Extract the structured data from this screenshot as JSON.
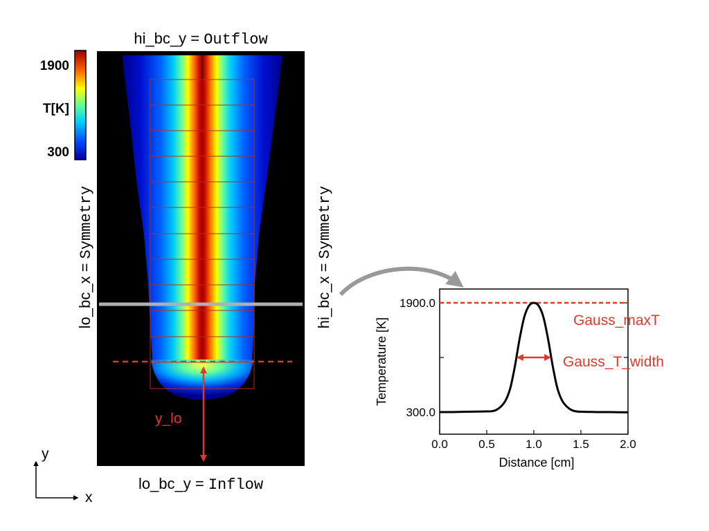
{
  "colors": {
    "annotation": "#e0392b",
    "field_background": "#000000",
    "sample_line": "#b0b0b0",
    "curve": "#000000",
    "curved_arrow": "#999999",
    "amr_grid": "#b03020"
  },
  "colorbar": {
    "max_label": "1900",
    "title": "T[K]",
    "min_label": "300"
  },
  "boundaries": {
    "hi_y": {
      "key": "hi_bc_y = ",
      "value": "Outflow"
    },
    "lo_y": {
      "key": "lo_bc_y = ",
      "value": "Inflow"
    },
    "lo_x": {
      "key": "lo_bc_x = ",
      "value": "Symmetry"
    },
    "hi_x": {
      "key": "hi_bc_x = ",
      "value": "Symmetry"
    }
  },
  "annotations": {
    "y_lo": "y_lo",
    "gauss_maxT": "Gauss_maxT",
    "gauss_T_width": "Gauss_T_width"
  },
  "axes_indicator": {
    "x": "x",
    "y": "y"
  },
  "chart_data": {
    "type": "line",
    "xlabel": "Distance [cm]",
    "ylabel": "Temperature [K]",
    "xlim": [
      0.0,
      2.0
    ],
    "ylim": [
      300,
      1900
    ],
    "x_tick_labels": [
      "0.0",
      "0.5",
      "1.0",
      "1.5",
      "2.0"
    ],
    "y_tick_labels": [
      "300.0",
      "1900.0"
    ],
    "series": [
      {
        "x": [
          0.0,
          0.1,
          0.2,
          0.3,
          0.4,
          0.5,
          0.55,
          0.6,
          0.65,
          0.7,
          0.75,
          0.8,
          0.85,
          0.9,
          0.95,
          1.0,
          1.05,
          1.1,
          1.15,
          1.2,
          1.25,
          1.3,
          1.35,
          1.4,
          1.45,
          1.5,
          1.6,
          1.7,
          1.8,
          1.9,
          2.0
        ],
        "y": [
          300,
          300,
          302,
          305,
          308,
          310,
          312,
          330,
          380,
          470,
          650,
          980,
          1380,
          1700,
          1860,
          1900,
          1860,
          1700,
          1380,
          980,
          650,
          470,
          380,
          330,
          310,
          305,
          302,
          300,
          300,
          298,
          296
        ]
      }
    ]
  }
}
